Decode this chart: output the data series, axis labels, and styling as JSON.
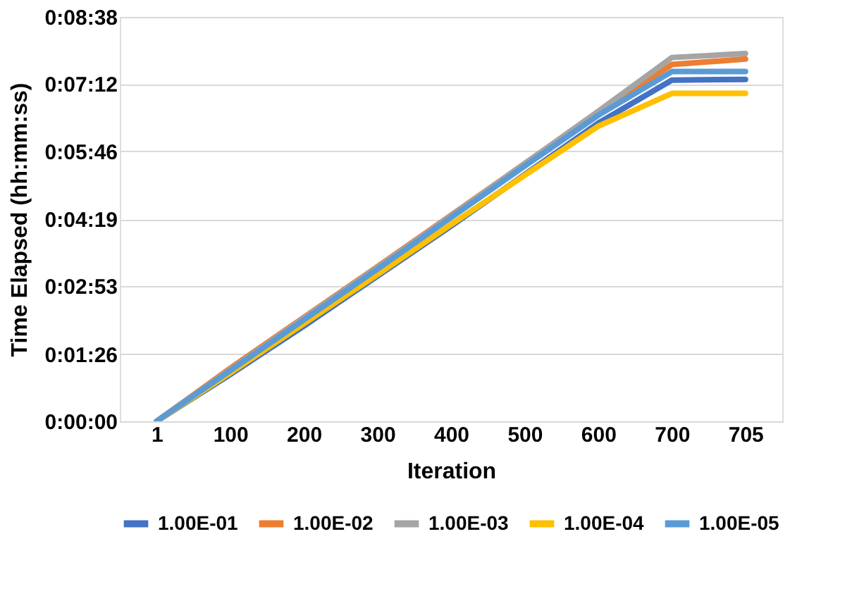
{
  "chart_data": {
    "type": "line",
    "xlabel": "Iteration",
    "ylabel": "Time Elapsed (hh:mm:ss)",
    "categories": [
      "1",
      "100",
      "200",
      "300",
      "400",
      "500",
      "600",
      "700",
      "705"
    ],
    "series": [
      {
        "name": "1.00E-01",
        "color": "#4472c4",
        "values": [
          0,
          60,
          122,
          186,
          250,
          316,
          382,
          437,
          438
        ]
      },
      {
        "name": "1.00E-02",
        "color": "#ed7d31",
        "values": [
          0,
          68,
          133,
          198,
          264,
          330,
          396,
          457,
          464
        ]
      },
      {
        "name": "1.00E-03",
        "color": "#a5a5a5",
        "values": [
          0,
          66,
          132,
          197,
          263,
          330,
          397,
          466,
          471
        ]
      },
      {
        "name": "1.00E-04",
        "color": "#ffc000",
        "values": [
          0,
          62,
          125,
          188,
          252,
          315,
          378,
          420,
          420
        ]
      },
      {
        "name": "1.00E-05",
        "color": "#5b9bd5",
        "values": [
          0,
          65,
          130,
          195,
          261,
          327,
          392,
          448,
          448
        ]
      }
    ],
    "ylim": [
      0,
      518
    ],
    "yticks": [
      {
        "value": 0,
        "label": "0:00:00"
      },
      {
        "value": 86,
        "label": "0:01:26"
      },
      {
        "value": 173,
        "label": "0:02:53"
      },
      {
        "value": 259,
        "label": "0:04:19"
      },
      {
        "value": 346,
        "label": "0:05:46"
      },
      {
        "value": 432,
        "label": "0:07:12"
      },
      {
        "value": 518,
        "label": "0:08:38"
      }
    ],
    "grid": "y",
    "legend": "bottom",
    "marker": "none",
    "line_style": "solid"
  }
}
